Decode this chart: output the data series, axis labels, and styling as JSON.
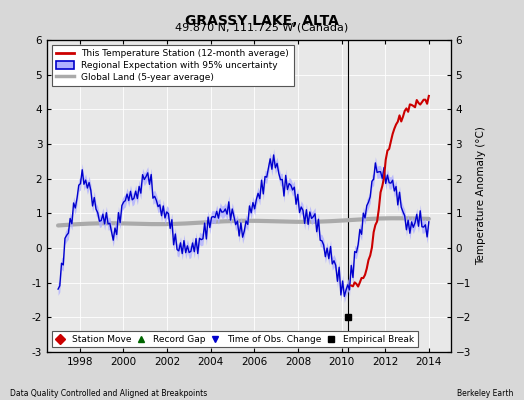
{
  "title": "GRASSY LAKE, ALTA",
  "subtitle": "49.870 N, 111.725 W (Canada)",
  "footer_left": "Data Quality Controlled and Aligned at Breakpoints",
  "footer_right": "Berkeley Earth",
  "ylabel": "Temperature Anomaly (°C)",
  "xlim": [
    1996.5,
    2015.0
  ],
  "ylim": [
    -3,
    6
  ],
  "yticks": [
    -3,
    -2,
    -1,
    0,
    1,
    2,
    3,
    4,
    5,
    6
  ],
  "xticks": [
    1998,
    2000,
    2002,
    2004,
    2006,
    2008,
    2010,
    2012,
    2014
  ],
  "bg_color": "#d8d8d8",
  "plot_bg_color": "#e8e8e8",
  "regional_band_color": "#b0b0ff",
  "regional_line_color": "#0000cc",
  "station_line_color": "#cc0000",
  "global_line_color": "#aaaaaa",
  "vertical_line_x": 2010.3,
  "empirical_break_x": 2010.3,
  "empirical_break_y": -2.0,
  "station_start_x": 2010.5,
  "legend_labels": [
    "This Temperature Station (12-month average)",
    "Regional Expectation with 95% uncertainty",
    "Global Land (5-year average)"
  ],
  "bottom_legend_labels": [
    "Station Move",
    "Record Gap",
    "Time of Obs. Change",
    "Empirical Break"
  ]
}
